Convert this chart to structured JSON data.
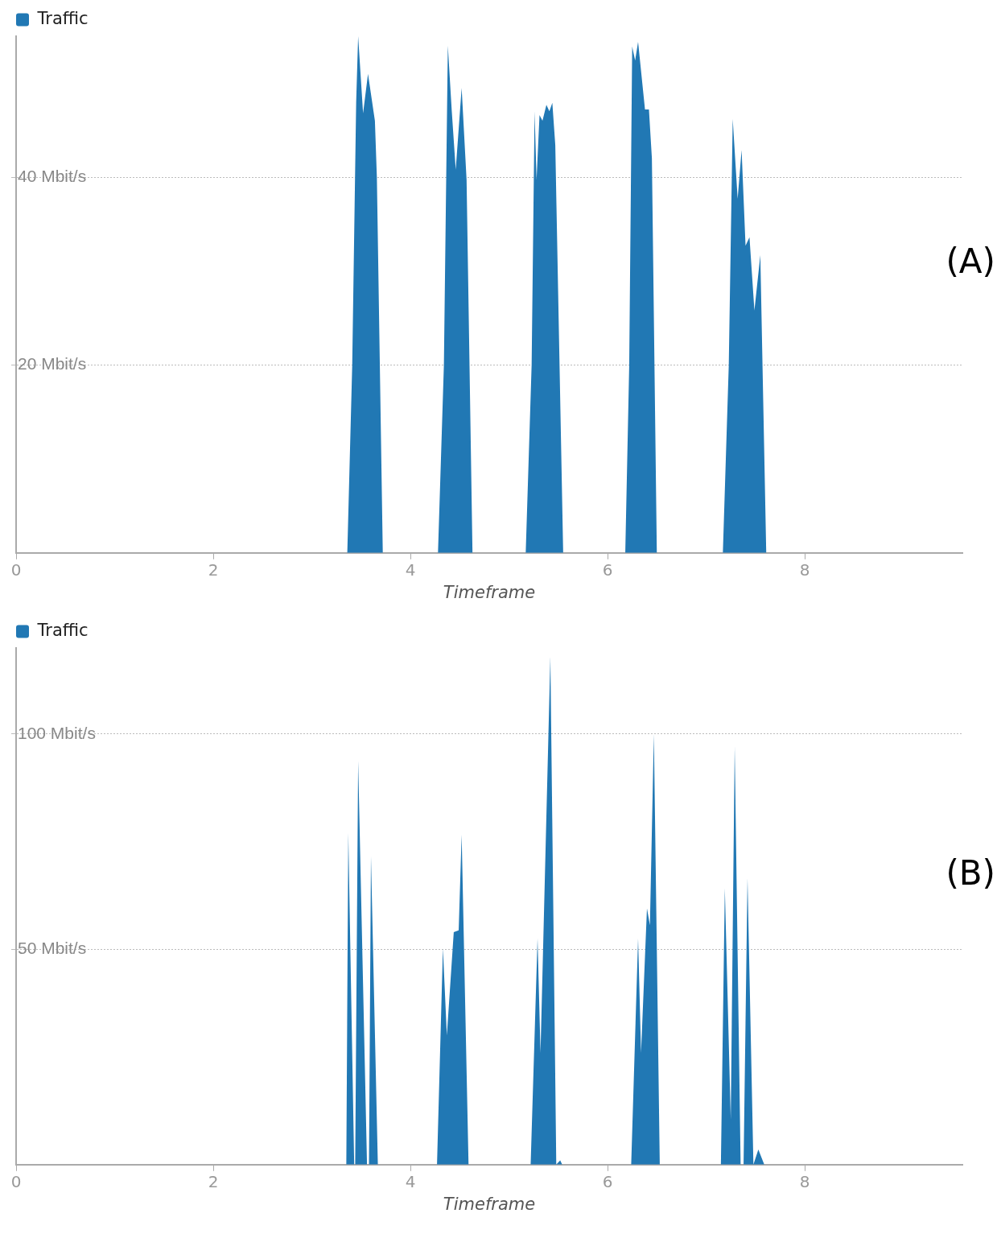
{
  "chart_data": [
    {
      "type": "area",
      "xlabel": "Timeframe",
      "annotations": [
        "(A)"
      ],
      "legend": "top left",
      "grid": "y",
      "marker": "none",
      "xlim": [
        0,
        9.6
      ],
      "ylim": [
        0,
        55
      ],
      "xticks": [
        0,
        2,
        4,
        6,
        8
      ],
      "yticks": [
        {
          "value": 20,
          "label": "20 Mbit/s"
        },
        {
          "value": 40,
          "label": "40 Mbit/s"
        }
      ],
      "x": [
        0,
        3.36,
        3.41,
        3.45,
        3.47,
        3.52,
        3.57,
        3.64,
        3.66,
        3.72,
        4.28,
        4.34,
        4.38,
        4.42,
        4.46,
        4.52,
        4.57,
        4.63,
        5.17,
        5.23,
        5.26,
        5.28,
        5.31,
        5.34,
        5.38,
        5.41,
        5.44,
        5.47,
        5.55,
        6.18,
        6.22,
        6.25,
        6.28,
        6.31,
        6.38,
        6.42,
        6.45,
        6.5,
        7.17,
        7.23,
        7.27,
        7.32,
        7.36,
        7.4,
        7.44,
        7.49,
        7.55,
        7.61,
        9.6
      ],
      "series": [
        {
          "name": "Traffic",
          "color": "#2178b4",
          "values": [
            0,
            0,
            20,
            48,
            55,
            46.8,
            51,
            46,
            40,
            0,
            0,
            20,
            54,
            47,
            40.8,
            49.5,
            39.7,
            0,
            0,
            20,
            47,
            39.7,
            46.6,
            46,
            47.7,
            47,
            47.9,
            43.4,
            0,
            0,
            20,
            53.9,
            52.4,
            54.4,
            47.2,
            47.2,
            42,
            0,
            0,
            20,
            46.2,
            37.7,
            42.9,
            32.7,
            33.6,
            25.8,
            31.7,
            0,
            0
          ]
        }
      ]
    },
    {
      "type": "area",
      "xlabel": "Timeframe",
      "annotations": [
        "(B)"
      ],
      "legend": "top left",
      "grid": "y",
      "marker": "none",
      "xlim": [
        0,
        9.6
      ],
      "ylim": [
        0,
        120
      ],
      "xticks": [
        0,
        2,
        4,
        6,
        8
      ],
      "yticks": [
        {
          "value": 50,
          "label": "50 Mbit/s"
        },
        {
          "value": 100,
          "label": "100 Mbit/s"
        }
      ],
      "x": [
        0,
        3.35,
        3.37,
        3.43,
        3.44,
        3.47,
        3.56,
        3.58,
        3.6,
        3.67,
        4.27,
        4.33,
        4.37,
        4.44,
        4.49,
        4.52,
        4.59,
        5.22,
        5.29,
        5.32,
        5.42,
        5.48,
        5.52,
        5.54,
        6.24,
        6.31,
        6.34,
        6.4,
        6.43,
        6.47,
        6.53,
        7.15,
        7.19,
        7.25,
        7.29,
        7.35,
        7.38,
        7.42,
        7.48,
        7.53,
        7.59,
        9.6
      ],
      "series": [
        {
          "name": "Traffic",
          "color": "#2178b4",
          "values": [
            0,
            0,
            77,
            0,
            0,
            93.8,
            0,
            0,
            71.6,
            0,
            0,
            50.2,
            30,
            54,
            54.4,
            76.6,
            0,
            0,
            52.5,
            26,
            118,
            0,
            1,
            0,
            0,
            52.5,
            26,
            59.5,
            55.6,
            100,
            0,
            0,
            64.2,
            10.5,
            97.2,
            0,
            0,
            66.5,
            0,
            3.5,
            0,
            0
          ]
        }
      ]
    }
  ]
}
